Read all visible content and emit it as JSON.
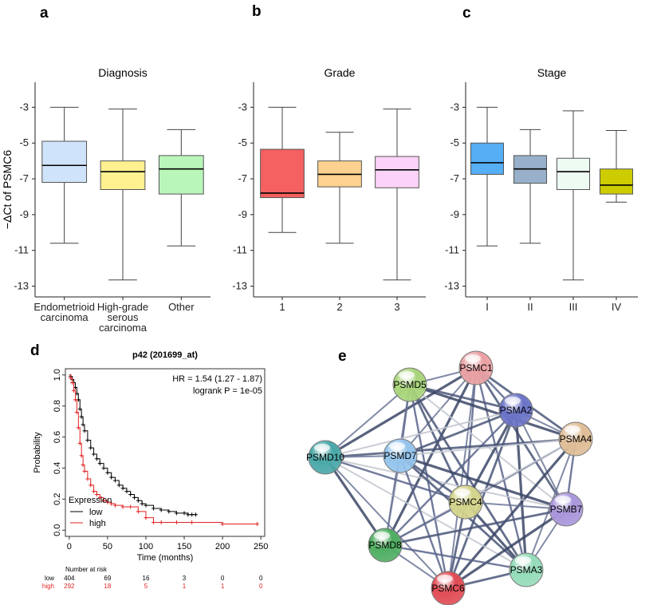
{
  "chart_data": [
    {
      "panel": "a",
      "type": "box",
      "title": "Diagnosis",
      "ylabel": "−ΔCt of PSMC6",
      "ylim": [
        -13.6,
        -1.6
      ],
      "yticks": [
        -3,
        -5,
        -7,
        -9,
        -11,
        -13
      ],
      "categories": [
        {
          "label": [
            "Endometrioid",
            "carcinoma"
          ],
          "min": -10.6,
          "q1": -7.2,
          "median": -6.25,
          "q3": -4.9,
          "max": -3.0,
          "color": "#cfe3fa"
        },
        {
          "label": [
            "High-grade",
            "serous",
            "carcinoma"
          ],
          "min": -12.65,
          "q1": -7.6,
          "median": -6.6,
          "q3": -6.0,
          "max": -3.1,
          "color": "#fff090"
        },
        {
          "label": [
            "Other"
          ],
          "min": -10.75,
          "q1": -7.85,
          "median": -6.45,
          "q3": -5.7,
          "max": -4.25,
          "color": "#b9f6b9"
        }
      ]
    },
    {
      "panel": "b",
      "type": "box",
      "title": "Grade",
      "ylim": [
        -13.6,
        -1.6
      ],
      "yticks": [
        -3,
        -5,
        -7,
        -9,
        -11,
        -13
      ],
      "categories": [
        {
          "label": [
            "1"
          ],
          "min": -10.0,
          "q1": -8.05,
          "median": -7.8,
          "q3": -5.35,
          "max": -3.0,
          "color": "#f56060"
        },
        {
          "label": [
            "2"
          ],
          "min": -10.6,
          "q1": -7.45,
          "median": -6.75,
          "q3": -6.0,
          "max": -4.4,
          "color": "#fdd190"
        },
        {
          "label": [
            "3"
          ],
          "min": -12.65,
          "q1": -7.5,
          "median": -6.5,
          "q3": -5.75,
          "max": -3.1,
          "color": "#fbd2f8"
        }
      ]
    },
    {
      "panel": "c",
      "type": "box",
      "title": "Stage",
      "ylim": [
        -13.6,
        -1.6
      ],
      "yticks": [
        -3,
        -5,
        -7,
        -9,
        -11,
        -13
      ],
      "categories": [
        {
          "label": [
            "I"
          ],
          "min": -10.75,
          "q1": -6.75,
          "median": -6.1,
          "q3": -5.0,
          "max": -3.0,
          "color": "#56aef5"
        },
        {
          "label": [
            "II"
          ],
          "min": -10.6,
          "q1": -7.25,
          "median": -6.45,
          "q3": -5.7,
          "max": -4.25,
          "color": "#98b0c9"
        },
        {
          "label": [
            "III"
          ],
          "min": -12.65,
          "q1": -7.6,
          "median": -6.6,
          "q3": -5.85,
          "max": -3.2,
          "color": "#eefbf3"
        },
        {
          "label": [
            "IV"
          ],
          "min": -8.3,
          "q1": -7.85,
          "median": -7.35,
          "q3": -6.45,
          "max": -4.3,
          "color": "#cccc00"
        }
      ]
    },
    {
      "panel": "d",
      "type": "line",
      "title": "p42 (201699_at)",
      "xlabel": "Time (months)",
      "ylabel": "Probability",
      "xlim": [
        -5,
        255
      ],
      "ylim": [
        -0.04,
        1.04
      ],
      "xticks": [
        0,
        50,
        100,
        150,
        200,
        250
      ],
      "yticks": [
        0.0,
        0.2,
        0.4,
        0.6,
        0.8,
        1.0
      ],
      "hr_text": "HR = 1.54 (1.27 - 1.87)",
      "logrank_text": "logrank P = 1e-05",
      "legend_title": "Expression",
      "series": [
        {
          "name": "low",
          "color": "#000000",
          "x": [
            0,
            2,
            4,
            6,
            8,
            10,
            12,
            14,
            16,
            18,
            20,
            24,
            28,
            32,
            36,
            40,
            45,
            50,
            55,
            60,
            65,
            70,
            75,
            80,
            85,
            90,
            95,
            100,
            110,
            120,
            130,
            140,
            150,
            155,
            160,
            165
          ],
          "y": [
            1.0,
            0.99,
            0.97,
            0.95,
            0.92,
            0.88,
            0.84,
            0.78,
            0.73,
            0.68,
            0.64,
            0.58,
            0.53,
            0.49,
            0.46,
            0.43,
            0.4,
            0.37,
            0.34,
            0.32,
            0.29,
            0.27,
            0.25,
            0.23,
            0.21,
            0.19,
            0.17,
            0.16,
            0.14,
            0.13,
            0.12,
            0.11,
            0.11,
            0.1,
            0.1,
            0.1
          ]
        },
        {
          "name": "high",
          "color": "#e32222",
          "x": [
            0,
            2,
            4,
            6,
            8,
            10,
            12,
            14,
            16,
            18,
            20,
            24,
            28,
            32,
            36,
            40,
            45,
            50,
            55,
            60,
            70,
            80,
            90,
            100,
            110,
            120,
            140,
            160,
            200,
            245
          ],
          "y": [
            1.0,
            0.98,
            0.95,
            0.9,
            0.84,
            0.76,
            0.66,
            0.56,
            0.48,
            0.42,
            0.38,
            0.33,
            0.29,
            0.25,
            0.23,
            0.21,
            0.19,
            0.18,
            0.17,
            0.16,
            0.15,
            0.15,
            0.12,
            0.08,
            0.05,
            0.05,
            0.05,
            0.05,
            0.04,
            0.04
          ]
        }
      ],
      "risk_table": {
        "header": "Number at risk",
        "times": [
          0,
          50,
          100,
          150,
          200,
          250
        ],
        "rows": [
          {
            "name": "low",
            "counts": [
              "404",
              "69",
              "16",
              "3",
              "0",
              "0"
            ],
            "color": "#000000"
          },
          {
            "name": "high",
            "counts": [
              "292",
              "18",
              "5",
              "1",
              "1",
              "0"
            ],
            "color": "#e32222"
          }
        ]
      }
    },
    {
      "panel": "e",
      "type": "network",
      "nodes": [
        {
          "id": "PSMC1",
          "color": "#eaa0a3"
        },
        {
          "id": "PSMD5",
          "color": "#a8d47a"
        },
        {
          "id": "PSMA2",
          "color": "#6b74c7"
        },
        {
          "id": "PSMA4",
          "color": "#dfbd96"
        },
        {
          "id": "PSMD10",
          "color": "#4aa8a8"
        },
        {
          "id": "PSMD7",
          "color": "#94c4ec"
        },
        {
          "id": "PSMC4",
          "color": "#d4d48c"
        },
        {
          "id": "PSMB7",
          "color": "#a996dc"
        },
        {
          "id": "PSMD8",
          "color": "#4fae62"
        },
        {
          "id": "PSMC6",
          "color": "#e14c55"
        },
        {
          "id": "PSMA3",
          "color": "#94dcb9"
        }
      ]
    }
  ],
  "panel_labels": {
    "a": "a",
    "b": "b",
    "c": "c",
    "d": "d",
    "e": "e"
  }
}
